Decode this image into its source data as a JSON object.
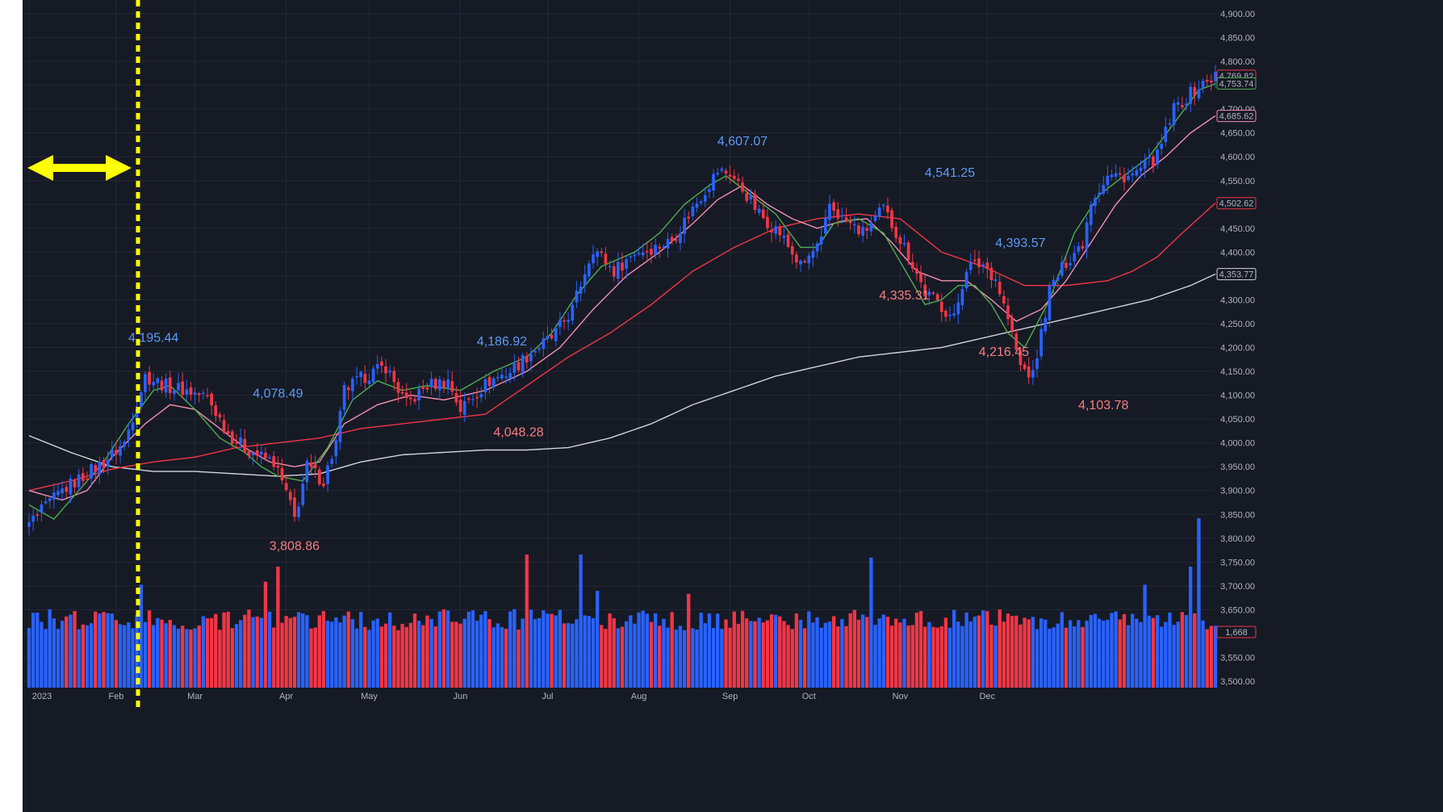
{
  "colors": {
    "background": "#161a25",
    "grid": "#232836",
    "up": "#2962ff",
    "down": "#f23645",
    "ma_fast": "#4caf50",
    "ma_mid": "#f48fb1",
    "ma_slow": "#f23645",
    "ma_long": "#d1d4dc",
    "marker": "#ffff00"
  },
  "chart_data": {
    "type": "candlestick",
    "y_ticks": [
      "4,900.00",
      "4,850.00",
      "4,800.00",
      "4,750.00",
      "4,700.00",
      "4,650.00",
      "4,600.00",
      "4,550.00",
      "4,500.00",
      "4,450.00",
      "4,400.00",
      "4,350.00",
      "4,300.00",
      "4,250.00",
      "4,200.00",
      "4,150.00",
      "4,100.00",
      "4,050.00",
      "4,000.00",
      "3,950.00",
      "3,900.00",
      "3,850.00",
      "3,800.00",
      "3,750.00",
      "3,700.00",
      "3,650.00",
      "3,600.00",
      "3,550.00",
      "3,500.00"
    ],
    "ylim": [
      3500,
      4900
    ],
    "x_ticks": [
      "2023",
      "Feb",
      "Mar",
      "Apr",
      "May",
      "Jun",
      "Jul",
      "Aug",
      "Sep",
      "Oct",
      "Nov",
      "Dec"
    ],
    "annotations": [
      {
        "text": "4,195.44",
        "kind": "high"
      },
      {
        "text": "4,078.49",
        "kind": "high"
      },
      {
        "text": "3,808.86",
        "kind": "low"
      },
      {
        "text": "4,186.92",
        "kind": "high"
      },
      {
        "text": "4,048.28",
        "kind": "low"
      },
      {
        "text": "4,607.07",
        "kind": "high"
      },
      {
        "text": "4,335.31",
        "kind": "low"
      },
      {
        "text": "4,541.25",
        "kind": "high"
      },
      {
        "text": "4,393.57",
        "kind": "high"
      },
      {
        "text": "4,216.45",
        "kind": "low"
      },
      {
        "text": "4,103.78",
        "kind": "low"
      }
    ],
    "price_labels": [
      {
        "text": "4,769.82",
        "series": "close"
      },
      {
        "text": "4,753.74",
        "series": "ma_fast"
      },
      {
        "text": "4,685.62",
        "series": "ma_mid"
      },
      {
        "text": "4,502.62",
        "series": "ma_slow"
      },
      {
        "text": "4,353.77",
        "series": "ma_long"
      },
      {
        "text": "1,668",
        "series": "volume"
      }
    ],
    "close_path": [
      [
        0,
        3830
      ],
      [
        8,
        3900
      ],
      [
        18,
        3960
      ],
      [
        23,
        4000
      ],
      [
        28,
        4140
      ],
      [
        33,
        4120
      ],
      [
        38,
        4110
      ],
      [
        43,
        4095
      ],
      [
        48,
        4020
      ],
      [
        52,
        3990
      ],
      [
        56,
        3970
      ],
      [
        59,
        3960
      ],
      [
        62,
        3895
      ],
      [
        64,
        3840
      ],
      [
        67,
        3950
      ],
      [
        71,
        3920
      ],
      [
        74,
        4000
      ],
      [
        76,
        4110
      ],
      [
        81,
        4140
      ],
      [
        86,
        4160
      ],
      [
        91,
        4080
      ],
      [
        96,
        4120
      ],
      [
        101,
        4130
      ],
      [
        104,
        4070
      ],
      [
        106,
        4090
      ],
      [
        111,
        4130
      ],
      [
        116,
        4150
      ],
      [
        121,
        4190
      ],
      [
        126,
        4220
      ],
      [
        131,
        4280
      ],
      [
        134,
        4360
      ],
      [
        136,
        4410
      ],
      [
        141,
        4360
      ],
      [
        146,
        4400
      ],
      [
        151,
        4410
      ],
      [
        155,
        4425
      ],
      [
        161,
        4505
      ],
      [
        166,
        4570
      ],
      [
        169,
        4565
      ],
      [
        173,
        4520
      ],
      [
        176,
        4480
      ],
      [
        181,
        4440
      ],
      [
        186,
        4370
      ],
      [
        191,
        4420
      ],
      [
        193,
        4500
      ],
      [
        196,
        4470
      ],
      [
        201,
        4440
      ],
      [
        206,
        4490
      ],
      [
        212,
        4395
      ],
      [
        216,
        4315
      ],
      [
        219,
        4295
      ],
      [
        223,
        4260
      ],
      [
        226,
        4370
      ],
      [
        230,
        4375
      ],
      [
        233,
        4345
      ],
      [
        236,
        4260
      ],
      [
        239,
        4160
      ],
      [
        242,
        4140
      ],
      [
        246,
        4320
      ],
      [
        250,
        4380
      ],
      [
        254,
        4420
      ],
      [
        256,
        4510
      ],
      [
        260,
        4560
      ],
      [
        266,
        4560
      ],
      [
        272,
        4600
      ],
      [
        276,
        4700
      ],
      [
        281,
        4740
      ],
      [
        286,
        4770
      ]
    ],
    "ma_fast": [
      [
        0,
        3870
      ],
      [
        6,
        3840
      ],
      [
        12,
        3900
      ],
      [
        18,
        3960
      ],
      [
        24,
        4040
      ],
      [
        30,
        4110
      ],
      [
        34,
        4120
      ],
      [
        40,
        4070
      ],
      [
        46,
        4010
      ],
      [
        52,
        3980
      ],
      [
        56,
        3950
      ],
      [
        60,
        3930
      ],
      [
        66,
        3920
      ],
      [
        72,
        3990
      ],
      [
        78,
        4090
      ],
      [
        84,
        4130
      ],
      [
        90,
        4110
      ],
      [
        96,
        4120
      ],
      [
        104,
        4110
      ],
      [
        112,
        4150
      ],
      [
        120,
        4180
      ],
      [
        126,
        4230
      ],
      [
        132,
        4310
      ],
      [
        138,
        4370
      ],
      [
        146,
        4400
      ],
      [
        152,
        4440
      ],
      [
        158,
        4500
      ],
      [
        164,
        4540
      ],
      [
        168,
        4560
      ],
      [
        174,
        4520
      ],
      [
        180,
        4480
      ],
      [
        186,
        4410
      ],
      [
        190,
        4410
      ],
      [
        194,
        4460
      ],
      [
        200,
        4470
      ],
      [
        206,
        4440
      ],
      [
        212,
        4350
      ],
      [
        216,
        4290
      ],
      [
        220,
        4300
      ],
      [
        224,
        4330
      ],
      [
        228,
        4330
      ],
      [
        232,
        4290
      ],
      [
        236,
        4230
      ],
      [
        240,
        4200
      ],
      [
        246,
        4300
      ],
      [
        252,
        4440
      ],
      [
        258,
        4520
      ],
      [
        264,
        4560
      ],
      [
        270,
        4600
      ],
      [
        276,
        4670
      ],
      [
        282,
        4740
      ],
      [
        286,
        4753
      ]
    ],
    "ma_mid": [
      [
        0,
        3900
      ],
      [
        8,
        3880
      ],
      [
        14,
        3900
      ],
      [
        20,
        3970
      ],
      [
        28,
        4040
      ],
      [
        34,
        4080
      ],
      [
        40,
        4070
      ],
      [
        46,
        4030
      ],
      [
        52,
        3990
      ],
      [
        58,
        3960
      ],
      [
        64,
        3950
      ],
      [
        70,
        3960
      ],
      [
        76,
        4040
      ],
      [
        84,
        4080
      ],
      [
        92,
        4100
      ],
      [
        100,
        4090
      ],
      [
        110,
        4110
      ],
      [
        120,
        4150
      ],
      [
        128,
        4200
      ],
      [
        136,
        4280
      ],
      [
        144,
        4350
      ],
      [
        152,
        4400
      ],
      [
        160,
        4460
      ],
      [
        166,
        4510
      ],
      [
        172,
        4540
      ],
      [
        178,
        4500
      ],
      [
        184,
        4470
      ],
      [
        190,
        4450
      ],
      [
        196,
        4465
      ],
      [
        202,
        4470
      ],
      [
        208,
        4420
      ],
      [
        214,
        4360
      ],
      [
        220,
        4340
      ],
      [
        226,
        4340
      ],
      [
        232,
        4300
      ],
      [
        238,
        4255
      ],
      [
        244,
        4280
      ],
      [
        250,
        4340
      ],
      [
        256,
        4420
      ],
      [
        262,
        4500
      ],
      [
        268,
        4560
      ],
      [
        274,
        4600
      ],
      [
        280,
        4650
      ],
      [
        286,
        4686
      ]
    ],
    "ma_slow": [
      [
        0,
        3900
      ],
      [
        10,
        3920
      ],
      [
        20,
        3945
      ],
      [
        30,
        3960
      ],
      [
        40,
        3970
      ],
      [
        50,
        3990
      ],
      [
        60,
        4000
      ],
      [
        70,
        4010
      ],
      [
        80,
        4030
      ],
      [
        90,
        4040
      ],
      [
        100,
        4050
      ],
      [
        110,
        4060
      ],
      [
        120,
        4120
      ],
      [
        130,
        4180
      ],
      [
        140,
        4230
      ],
      [
        150,
        4290
      ],
      [
        160,
        4360
      ],
      [
        170,
        4410
      ],
      [
        180,
        4450
      ],
      [
        190,
        4470
      ],
      [
        200,
        4480
      ],
      [
        210,
        4470
      ],
      [
        220,
        4400
      ],
      [
        230,
        4370
      ],
      [
        240,
        4330
      ],
      [
        250,
        4330
      ],
      [
        260,
        4340
      ],
      [
        266,
        4360
      ],
      [
        272,
        4390
      ],
      [
        278,
        4440
      ],
      [
        286,
        4503
      ]
    ],
    "ma_long": [
      [
        0,
        4015
      ],
      [
        10,
        3980
      ],
      [
        20,
        3950
      ],
      [
        30,
        3940
      ],
      [
        40,
        3940
      ],
      [
        50,
        3935
      ],
      [
        60,
        3930
      ],
      [
        70,
        3935
      ],
      [
        80,
        3960
      ],
      [
        90,
        3975
      ],
      [
        100,
        3980
      ],
      [
        110,
        3985
      ],
      [
        120,
        3985
      ],
      [
        130,
        3990
      ],
      [
        140,
        4010
      ],
      [
        150,
        4040
      ],
      [
        160,
        4080
      ],
      [
        170,
        4110
      ],
      [
        180,
        4140
      ],
      [
        190,
        4160
      ],
      [
        200,
        4180
      ],
      [
        210,
        4190
      ],
      [
        220,
        4200
      ],
      [
        230,
        4220
      ],
      [
        240,
        4240
      ],
      [
        250,
        4260
      ],
      [
        260,
        4280
      ],
      [
        270,
        4300
      ],
      [
        280,
        4330
      ],
      [
        286,
        4354
      ]
    ],
    "volume_spikes": [
      {
        "i": 27,
        "v": 1.7
      },
      {
        "i": 57,
        "v": 1.75
      },
      {
        "i": 60,
        "v": 2.0
      },
      {
        "i": 120,
        "v": 2.2
      },
      {
        "i": 133,
        "v": 2.2
      },
      {
        "i": 137,
        "v": 1.6
      },
      {
        "i": 159,
        "v": 1.55
      },
      {
        "i": 203,
        "v": 2.15
      },
      {
        "i": 269,
        "v": 1.7
      },
      {
        "i": 280,
        "v": 2.0
      },
      {
        "i": 282,
        "v": 2.8
      }
    ]
  }
}
